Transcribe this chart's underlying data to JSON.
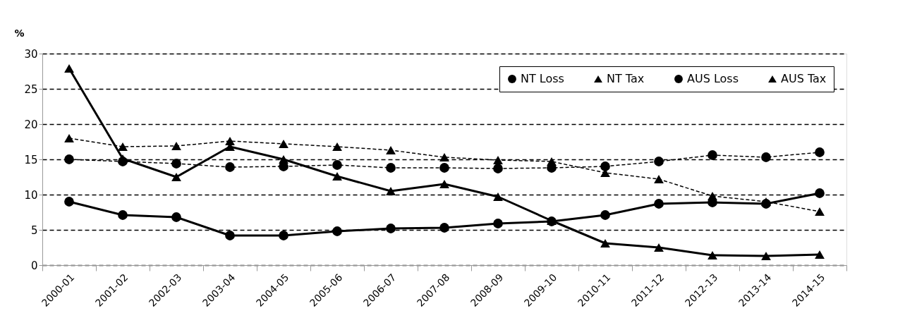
{
  "chart_data": {
    "type": "line",
    "ylabel": "%",
    "categories": [
      "2000-01",
      "2001-02",
      "2002-03",
      "2003-04",
      "2004-05",
      "2005-06",
      "2006-07",
      "2007-08",
      "2008-09",
      "2009-10",
      "2010-11",
      "2011-12",
      "2012-13",
      "2013-14",
      "2014-15"
    ],
    "series": [
      {
        "name": "NT Loss",
        "color": "#000000",
        "marker": "circle",
        "line_style": "solid",
        "values": [
          9.0,
          7.1,
          6.8,
          4.2,
          4.2,
          4.8,
          5.2,
          5.3,
          5.9,
          6.2,
          7.1,
          8.7,
          8.9,
          8.7,
          10.2
        ]
      },
      {
        "name": "NT Tax",
        "color": "#000000",
        "marker": "triangle",
        "line_style": "solid",
        "values": [
          27.9,
          15.1,
          12.5,
          16.8,
          15.0,
          12.6,
          10.5,
          11.5,
          9.7,
          6.3,
          3.1,
          2.5,
          1.4,
          1.3,
          1.5
        ]
      },
      {
        "name": "AUS Loss",
        "color": "#000000",
        "marker": "circle",
        "line_style": "dashed",
        "values": [
          15.0,
          14.7,
          14.4,
          13.9,
          14.0,
          14.2,
          13.8,
          13.8,
          13.7,
          13.8,
          14.0,
          14.7,
          15.6,
          15.3,
          16.0
        ]
      },
      {
        "name": "AUS Tax",
        "color": "#000000",
        "marker": "triangle",
        "line_style": "dashed",
        "values": [
          18.0,
          16.8,
          16.9,
          17.6,
          17.2,
          16.8,
          16.3,
          15.3,
          14.9,
          14.7,
          13.1,
          12.2,
          9.8,
          9.0,
          7.6
        ]
      }
    ],
    "ylim": [
      0,
      30
    ],
    "yticks": [
      0,
      5,
      10,
      15,
      20,
      25,
      30
    ],
    "grid": "y",
    "legend": "top right"
  }
}
